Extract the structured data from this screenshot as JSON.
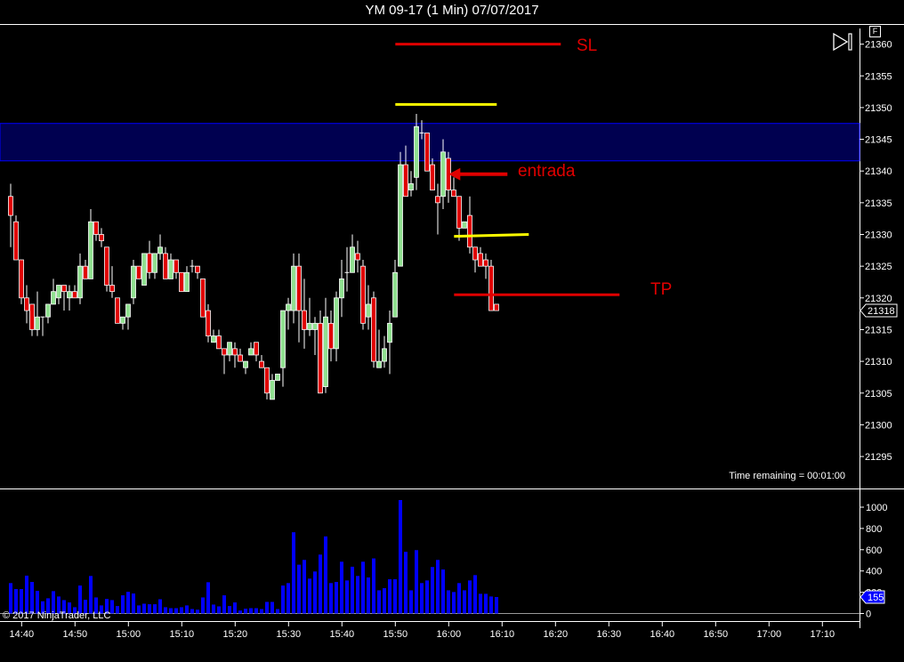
{
  "title": "YM 09-17 (1 Min)  07/07/2017",
  "copyright": "© 2017 NinjaTrader, LLC",
  "time_remaining": "Time remaining = 00:01:00",
  "f_button": "F",
  "colors": {
    "background": "#000000",
    "up": "#90e090",
    "down": "#e00000",
    "outline": "#ffffff",
    "volume": "#0000ff",
    "zone_fill": "#000050",
    "zone_border": "#0000ff",
    "annotation_red": "#e00000",
    "annotation_yellow": "#ffff00"
  },
  "chart_data": [
    {
      "type": "candlestick",
      "title": "YM 09-17 (1 Min)  07/07/2017",
      "start_time": "14:38",
      "interval_minutes": 1,
      "open": [
        21336,
        21332,
        21326,
        21320,
        21319,
        21315,
        21317,
        21317,
        21319,
        21320,
        21322,
        21320,
        21321,
        21320,
        21325,
        21323,
        21332,
        21330,
        21328,
        21322,
        21320,
        21316,
        21317,
        21320,
        21325,
        21322,
        21327,
        21324,
        21327,
        21327,
        21323,
        21326,
        21324,
        21321,
        21325,
        21325,
        21323,
        21318,
        21313,
        21314,
        21312,
        21311,
        21312,
        21311,
        21309,
        21311,
        21313,
        21310,
        21309,
        21304,
        21307,
        21309,
        21318,
        21318,
        21325,
        21318,
        21315,
        21315,
        21316,
        21306,
        21316,
        21312,
        21320,
        21324,
        21324,
        21327,
        21325,
        21317,
        21320,
        21309,
        21310,
        21313,
        21317,
        21325,
        21341,
        21337,
        21339,
        21346,
        21346,
        21341,
        21336,
        21336,
        21342,
        21337,
        21336,
        21331,
        21333,
        21328,
        21327,
        21326,
        21325,
        21319
      ],
      "high": [
        21338,
        21333,
        21326,
        21322,
        21319,
        21321,
        21317,
        21319,
        21323,
        21322,
        21322,
        21322,
        21322,
        21327,
        21326,
        21334,
        21332,
        21331,
        21328,
        21325,
        21320,
        21317,
        21319,
        21326,
        21325,
        21327,
        21329,
        21327,
        21330,
        21328,
        21327,
        21326,
        21324,
        21325,
        21326,
        21325,
        21323,
        21319,
        21315,
        21315,
        21312,
        21313,
        21313,
        21312,
        21310,
        21313,
        21313,
        21311,
        21309,
        21308,
        21308,
        21318,
        21320,
        21327,
        21327,
        21323,
        21320,
        21317,
        21318,
        21320,
        21318,
        21321,
        21326,
        21328,
        21330,
        21329,
        21326,
        21322,
        21321,
        21315,
        21314,
        21318,
        21326,
        21343,
        21344,
        21340,
        21349,
        21348,
        21346,
        21342,
        21338,
        21345,
        21343,
        21339,
        21336,
        21332,
        21336,
        21328,
        21328,
        21327,
        21326,
        21319
      ],
      "low": [
        21328,
        21326,
        21319,
        21316,
        21314,
        21314,
        21314,
        21316,
        21319,
        21319,
        21318,
        21318,
        21320,
        21319,
        21323,
        21323,
        21329,
        21328,
        21321,
        21320,
        21316,
        21315,
        21315,
        21319,
        21323,
        21322,
        21323,
        21323,
        21326,
        21323,
        21323,
        21323,
        21321,
        21321,
        21324,
        21323,
        21317,
        21313,
        21313,
        21312,
        21308,
        21310,
        21309,
        21310,
        21308,
        21311,
        21310,
        21309,
        21304,
        21304,
        21307,
        21306,
        21315,
        21316,
        21313,
        21312,
        21314,
        21311,
        21305,
        21305,
        21310,
        21310,
        21317,
        21321,
        21324,
        21324,
        21315,
        21315,
        21309,
        21309,
        21309,
        21308,
        21317,
        21325,
        21336,
        21336,
        21337,
        21345,
        21340,
        21337,
        21330,
        21334,
        21335,
        21336,
        21329,
        21331,
        21327,
        21324,
        21325,
        21323,
        21318,
        21318
      ],
      "close": [
        21333,
        21326,
        21320,
        21318,
        21315,
        21317,
        21317,
        21319,
        21321,
        21322,
        21321,
        21321,
        21320,
        21325,
        21323,
        21332,
        21330,
        21329,
        21322,
        21321,
        21316,
        21317,
        21319,
        21325,
        21323,
        21327,
        21324,
        21327,
        21328,
        21323,
        21326,
        21324,
        21321,
        21324,
        21325,
        21324,
        21317,
        21314,
        21314,
        21312,
        21311,
        21313,
        21311,
        21310,
        21310,
        21312,
        21311,
        21309,
        21305,
        21307,
        21308,
        21318,
        21319,
        21325,
        21318,
        21315,
        21316,
        21316,
        21305,
        21317,
        21312,
        21320,
        21323,
        21324,
        21328,
        21326,
        21316,
        21319,
        21310,
        21310,
        21312,
        21316,
        21324,
        21341,
        21336,
        21338,
        21347,
        21346,
        21340,
        21337,
        21335,
        21343,
        21337,
        21336,
        21331,
        21332,
        21328,
        21326,
        21325,
        21325,
        21318,
        21318
      ],
      "last_price": "21318",
      "y_axis": {
        "ticks": [
          "21295",
          "21300",
          "21305",
          "21310",
          "21315",
          "21320",
          "21325",
          "21330",
          "21335",
          "21340",
          "21345",
          "21350",
          "21355",
          "21360"
        ],
        "range": [
          21291,
          21364
        ]
      },
      "x_axis": {
        "ticks": [
          "14:40",
          "14:50",
          "15:00",
          "15:10",
          "15:20",
          "15:30",
          "15:40",
          "15:50",
          "16:00",
          "16:10",
          "16:20",
          "16:30",
          "16:40",
          "16:50",
          "17:00",
          "17:10"
        ]
      },
      "annotations": {
        "zone": {
          "from_price": 21341.6,
          "to_price": 21347.5
        },
        "lines": [
          {
            "label": "SL",
            "price_start": 21360,
            "price_end": 21360,
            "time_start": "15:50",
            "time_end": "16:21",
            "color": "red"
          },
          {
            "label": "",
            "price_start": 21350.5,
            "price_end": 21350.5,
            "time_start": "15:50",
            "time_end": "16:09",
            "color": "yellow"
          },
          {
            "label": "",
            "price_start": 21329.7,
            "price_end": 21330,
            "time_start": "16:01",
            "time_end": "16:15",
            "color": "yellow"
          },
          {
            "label": "TP",
            "price_start": 21320.5,
            "price_end": 21320.5,
            "time_start": "16:01",
            "time_end": "16:32",
            "color": "red"
          }
        ],
        "arrow": {
          "label": "entrada",
          "price": 21339.5,
          "time_from": "16:11",
          "time_to": "16:00",
          "color": "red"
        }
      }
    },
    {
      "type": "bar",
      "title": "",
      "values": [
        286,
        230,
        230,
        356,
        297,
        213,
        115,
        143,
        210,
        160,
        126,
        104,
        59,
        263,
        129,
        353,
        151,
        76,
        137,
        126,
        70,
        171,
        204,
        188,
        76,
        92,
        87,
        87,
        134,
        59,
        50,
        50,
        59,
        76,
        42,
        36,
        151,
        294,
        84,
        67,
        171,
        70,
        104,
        28,
        45,
        50,
        50,
        42,
        109,
        109,
        42,
        263,
        286,
        764,
        459,
        504,
        328,
        395,
        554,
        725,
        286,
        297,
        487,
        311,
        440,
        353,
        487,
        339,
        518,
        218,
        238,
        322,
        322,
        1067,
        580,
        218,
        596,
        286,
        311,
        437,
        504,
        414,
        218,
        202,
        286,
        218,
        311,
        361,
        185,
        185,
        160,
        155
      ],
      "last_value": "155",
      "y_axis": {
        "ticks": [
          "0",
          "200",
          "400",
          "600",
          "800",
          "1000"
        ],
        "range": [
          0,
          1000
        ]
      }
    }
  ]
}
